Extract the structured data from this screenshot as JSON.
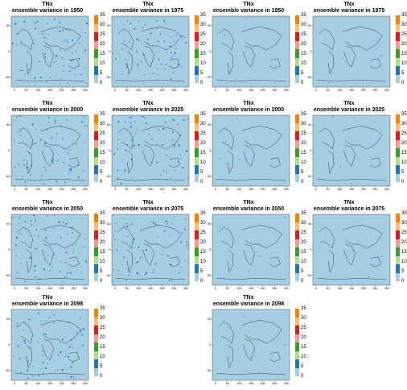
{
  "chart_data": [
    {
      "type": "heatmap",
      "title_line1": "TNx",
      "title_line2": "ensemble variance in 1950",
      "variant": "noisy",
      "xticks": [
        "0",
        "50",
        "100",
        "150",
        "200",
        "250",
        "300"
      ],
      "yticks": [
        "-50",
        "0",
        "50"
      ],
      "colorbar": {
        "ticks": [
          "0",
          "5",
          "10",
          "15",
          "20",
          "25",
          "30",
          "35"
        ],
        "range": [
          0,
          35
        ],
        "bins": [
          {
            "from": 0,
            "to": 2.5,
            "color": "#a6cee3"
          },
          {
            "from": 2.5,
            "to": 7.5,
            "color": "#1f78b4"
          },
          {
            "from": 7.5,
            "to": 12.5,
            "color": "#b2df8a"
          },
          {
            "from": 12.5,
            "to": 17.5,
            "color": "#33a02c"
          },
          {
            "from": 17.5,
            "to": 22.5,
            "color": "#fb9a99"
          },
          {
            "from": 22.5,
            "to": 27.5,
            "color": "#e31a1c"
          },
          {
            "from": 27.5,
            "to": 32.5,
            "color": "#fdbf6f"
          },
          {
            "from": 32.5,
            "to": 35,
            "color": "#ff7f00"
          }
        ]
      },
      "dominant_value_range": [
        0,
        2.5
      ]
    },
    {
      "type": "heatmap",
      "title_line1": "TNx",
      "title_line2": "ensemble variance in 1975",
      "variant": "noisy",
      "xticks": [
        "0",
        "50",
        "100",
        "150",
        "200",
        "250",
        "300"
      ],
      "yticks": [
        "-50",
        "0",
        "50"
      ],
      "colorbar": {
        "ticks": [
          "0",
          "5",
          "10",
          "15",
          "20",
          "25",
          "30",
          "35"
        ],
        "range": [
          0,
          35
        ]
      },
      "dominant_value_range": [
        0,
        2.5
      ]
    },
    {
      "type": "heatmap",
      "title_line1": "TNx",
      "title_line2": "ensemble variance in 1950",
      "variant": "clean",
      "xticks": [
        "0",
        "50",
        "100",
        "150",
        "200",
        "250",
        "300"
      ],
      "yticks": [
        "-50",
        "0",
        "50"
      ],
      "colorbar": {
        "ticks": [
          "0",
          "5",
          "10",
          "15",
          "20",
          "25",
          "30",
          "35"
        ],
        "range": [
          0,
          35
        ]
      },
      "dominant_value_range": [
        0,
        2.5
      ]
    },
    {
      "type": "heatmap",
      "title_line1": "TNx",
      "title_line2": "ensemble variance in 1975",
      "variant": "clean",
      "xticks": [
        "0",
        "50",
        "100",
        "150",
        "200",
        "250",
        "300"
      ],
      "yticks": [
        "-50",
        "0",
        "50"
      ],
      "colorbar": {
        "ticks": [
          "0",
          "5",
          "10",
          "15",
          "20",
          "25",
          "30",
          "35"
        ],
        "range": [
          0,
          35
        ]
      },
      "dominant_value_range": [
        0,
        2.5
      ]
    },
    {
      "type": "heatmap",
      "title_line1": "TNx",
      "title_line2": "ensemble variance in 2000",
      "variant": "noisy",
      "xticks": [
        "0",
        "50",
        "100",
        "150",
        "200",
        "250",
        "300"
      ],
      "yticks": [
        "-50",
        "0",
        "50"
      ],
      "colorbar": {
        "ticks": [
          "0",
          "5",
          "10",
          "15",
          "20",
          "25",
          "30",
          "35"
        ],
        "range": [
          0,
          35
        ]
      },
      "dominant_value_range": [
        0,
        2.5
      ]
    },
    {
      "type": "heatmap",
      "title_line1": "TNx",
      "title_line2": "ensemble variance in 2025",
      "variant": "noisy",
      "xticks": [
        "0",
        "50",
        "100",
        "150",
        "200",
        "250",
        "300"
      ],
      "yticks": [
        "-50",
        "0",
        "50"
      ],
      "colorbar": {
        "ticks": [
          "0",
          "5",
          "10",
          "15",
          "20",
          "25",
          "30",
          "35"
        ],
        "range": [
          0,
          35
        ]
      },
      "dominant_value_range": [
        0,
        2.5
      ]
    },
    {
      "type": "heatmap",
      "title_line1": "TNx",
      "title_line2": "ensemble variance in 2000",
      "variant": "clean",
      "xticks": [
        "0",
        "50",
        "100",
        "150",
        "200",
        "250",
        "300"
      ],
      "yticks": [
        "-50",
        "0",
        "50"
      ],
      "colorbar": {
        "ticks": [
          "0",
          "5",
          "10",
          "15",
          "20",
          "25",
          "30",
          "35"
        ],
        "range": [
          0,
          35
        ]
      },
      "dominant_value_range": [
        0,
        2.5
      ]
    },
    {
      "type": "heatmap",
      "title_line1": "TNx",
      "title_line2": "ensemble variance in 2025",
      "variant": "clean",
      "xticks": [
        "0",
        "50",
        "100",
        "150",
        "200",
        "250",
        "300"
      ],
      "yticks": [
        "-50",
        "0",
        "50"
      ],
      "colorbar": {
        "ticks": [
          "0",
          "5",
          "10",
          "15",
          "20",
          "25",
          "30",
          "35"
        ],
        "range": [
          0,
          35
        ]
      },
      "dominant_value_range": [
        0,
        2.5
      ]
    },
    {
      "type": "heatmap",
      "title_line1": "TNx",
      "title_line2": "ensemble variance in 2050",
      "variant": "noisy",
      "xticks": [
        "0",
        "50",
        "100",
        "150",
        "200",
        "250",
        "300"
      ],
      "yticks": [
        "-50",
        "0",
        "50"
      ],
      "colorbar": {
        "ticks": [
          "0",
          "5",
          "10",
          "15",
          "20",
          "25",
          "30",
          "35"
        ],
        "range": [
          0,
          35
        ]
      },
      "dominant_value_range": [
        0,
        2.5
      ]
    },
    {
      "type": "heatmap",
      "title_line1": "TNx",
      "title_line2": "ensemble variance in 2075",
      "variant": "noisy",
      "xticks": [
        "0",
        "50",
        "100",
        "150",
        "200",
        "250",
        "300"
      ],
      "yticks": [
        "-50",
        "0",
        "50"
      ],
      "colorbar": {
        "ticks": [
          "0",
          "5",
          "10",
          "15",
          "20",
          "25",
          "30",
          "35"
        ],
        "range": [
          0,
          35
        ]
      },
      "dominant_value_range": [
        0,
        2.5
      ]
    },
    {
      "type": "heatmap",
      "title_line1": "TNx",
      "title_line2": "ensemble variance in 2050",
      "variant": "clean",
      "xticks": [
        "0",
        "50",
        "100",
        "150",
        "200",
        "250",
        "300"
      ],
      "yticks": [
        "-50",
        "0",
        "50"
      ],
      "colorbar": {
        "ticks": [
          "0",
          "5",
          "10",
          "15",
          "20",
          "25",
          "30",
          "35"
        ],
        "range": [
          0,
          35
        ]
      },
      "dominant_value_range": [
        0,
        2.5
      ]
    },
    {
      "type": "heatmap",
      "title_line1": "TNx",
      "title_line2": "ensemble variance in 2075",
      "variant": "clean",
      "xticks": [
        "0",
        "50",
        "100",
        "150",
        "200",
        "250",
        "300"
      ],
      "yticks": [
        "-50",
        "0",
        "50"
      ],
      "colorbar": {
        "ticks": [
          "0",
          "5",
          "10",
          "15",
          "20",
          "25",
          "30",
          "35"
        ],
        "range": [
          0,
          35
        ]
      },
      "dominant_value_range": [
        0,
        2.5
      ]
    },
    {
      "type": "heatmap",
      "title_line1": "TNx",
      "title_line2": "ensemble variance in 2098",
      "variant": "noisy",
      "xticks": [
        "0",
        "50",
        "100",
        "150",
        "200",
        "250",
        "300"
      ],
      "yticks": [
        "-50",
        "0",
        "50"
      ],
      "colorbar": {
        "ticks": [
          "0",
          "5",
          "10",
          "15",
          "20",
          "25",
          "30",
          "35"
        ],
        "range": [
          0,
          35
        ]
      },
      "dominant_value_range": [
        0,
        2.5
      ]
    },
    {
      "type": "heatmap",
      "title_line1": "TNx",
      "title_line2": "ensemble variance in 2098",
      "variant": "clean",
      "xticks": [
        "0",
        "50",
        "100",
        "150",
        "200",
        "250",
        "300"
      ],
      "yticks": [
        "-50",
        "0",
        "50"
      ],
      "colorbar": {
        "ticks": [
          "0",
          "5",
          "10",
          "15",
          "20",
          "25",
          "30",
          "35"
        ],
        "range": [
          0,
          35
        ]
      },
      "dominant_value_range": [
        0,
        2.5
      ]
    }
  ]
}
